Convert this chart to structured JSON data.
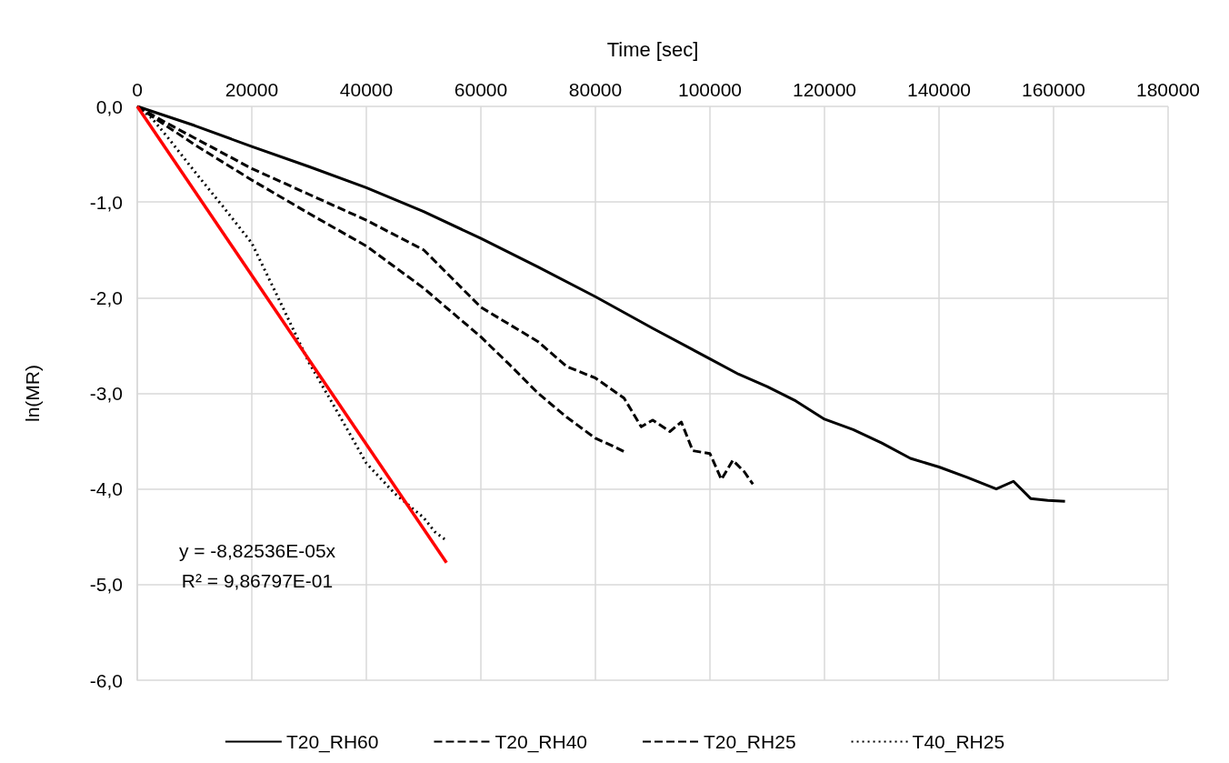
{
  "chart_data": {
    "type": "line",
    "xlabel": "Time [sec]",
    "ylabel": "ln(MR)",
    "xlim": [
      0,
      180000
    ],
    "xticks": [
      0,
      20000,
      40000,
      60000,
      80000,
      100000,
      120000,
      140000,
      160000,
      180000
    ],
    "ylim": [
      -6,
      0
    ],
    "yticks": [
      {
        "value": 0,
        "label": "0,0"
      },
      {
        "value": -1,
        "label": "-1,0"
      },
      {
        "value": -2,
        "label": "-2,0"
      },
      {
        "value": -3,
        "label": "-3,0"
      },
      {
        "value": -4,
        "label": "-4,0"
      },
      {
        "value": -5,
        "label": "-5,0"
      },
      {
        "value": -6,
        "label": "-6,0"
      }
    ],
    "grid": true,
    "legend": "bottom",
    "marker": "none",
    "series": [
      {
        "name": "T20_RH60",
        "color": "#000000",
        "line_style": "solid",
        "x": [
          0,
          5000,
          10000,
          20000,
          30000,
          40000,
          50000,
          60000,
          70000,
          80000,
          90000,
          100000,
          105000,
          110000,
          115000,
          120000,
          125000,
          130000,
          135000,
          140000,
          145000,
          150000,
          153000,
          156000,
          159000,
          162000
        ],
        "values": [
          0,
          -0.1,
          -0.2,
          -0.42,
          -0.63,
          -0.85,
          -1.1,
          -1.38,
          -1.68,
          -1.99,
          -2.32,
          -2.64,
          -2.8,
          -2.93,
          -3.08,
          -3.27,
          -3.38,
          -3.52,
          -3.68,
          -3.77,
          -3.88,
          -4.0,
          -3.92,
          -4.1,
          -4.12,
          -4.13
        ]
      },
      {
        "name": "T20_RH40",
        "color": "#000000",
        "line_style": "dashed",
        "x": [
          0,
          5000,
          10000,
          20000,
          30000,
          40000,
          50000,
          55000,
          60000,
          65000,
          70000,
          75000,
          80000,
          85000,
          88000,
          90000,
          93000,
          95000,
          97000,
          100000,
          102000,
          104000,
          106000,
          107500
        ],
        "values": [
          0,
          -0.17,
          -0.33,
          -0.65,
          -0.92,
          -1.19,
          -1.5,
          -1.8,
          -2.1,
          -2.28,
          -2.46,
          -2.72,
          -2.84,
          -3.05,
          -3.35,
          -3.28,
          -3.4,
          -3.3,
          -3.6,
          -3.63,
          -3.9,
          -3.7,
          -3.82,
          -3.95
        ]
      },
      {
        "name": "T20_RH25",
        "color": "#000000",
        "line_style": "dashed",
        "x": [
          0,
          5000,
          10000,
          20000,
          30000,
          40000,
          50000,
          60000,
          65000,
          70000,
          75000,
          80000,
          83000,
          85000
        ],
        "values": [
          0,
          -0.2,
          -0.4,
          -0.77,
          -1.12,
          -1.46,
          -1.9,
          -2.41,
          -2.7,
          -3.0,
          -3.25,
          -3.47,
          -3.55,
          -3.61
        ]
      },
      {
        "name": "T40_RH25",
        "color": "#000000",
        "line_style": "dotted",
        "x": [
          0,
          2500,
          5000,
          10000,
          15000,
          20000,
          25000,
          30000,
          35000,
          40000,
          45000,
          50000,
          52000,
          54000
        ],
        "values": [
          0,
          -0.12,
          -0.3,
          -0.68,
          -1.05,
          -1.43,
          -2.05,
          -2.68,
          -3.2,
          -3.73,
          -4.05,
          -4.3,
          -4.45,
          -4.54
        ]
      },
      {
        "color": "#ff0000",
        "line_style": "solid",
        "x": [
          0,
          54000
        ],
        "values": [
          0,
          -4.77
        ]
      }
    ],
    "annotations": [
      "y = -8,82536E-05x",
      "R² = 9,86797E-01"
    ]
  }
}
